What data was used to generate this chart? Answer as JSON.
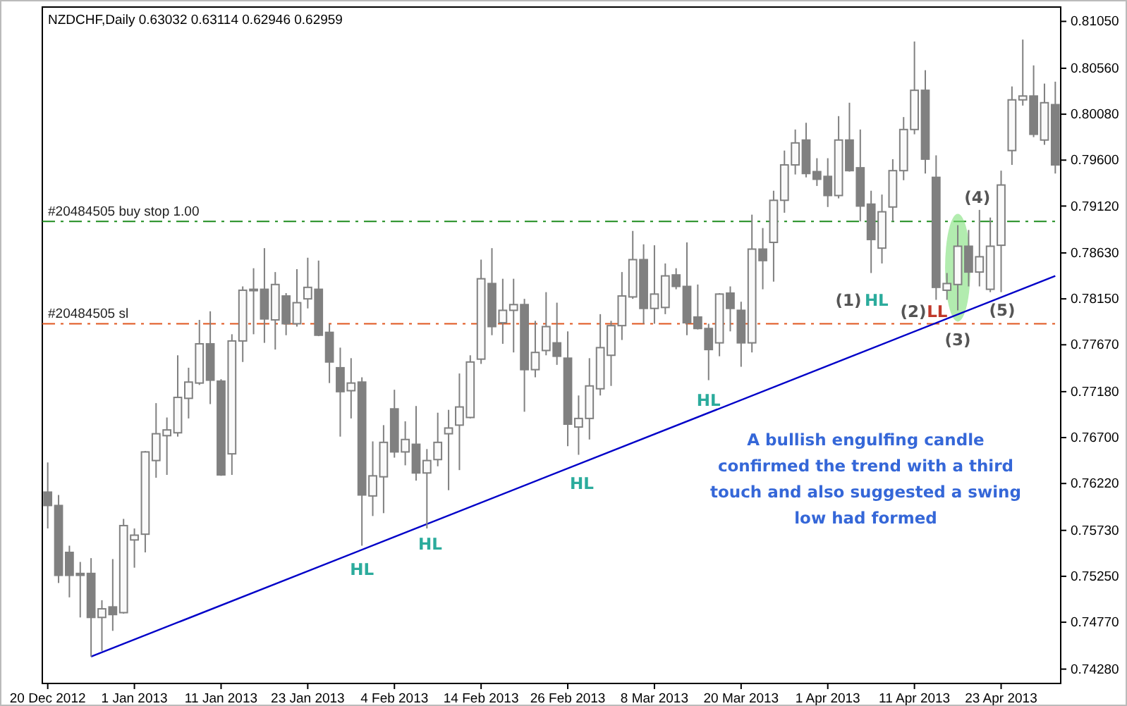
{
  "chart_data": {
    "type": "candlestick",
    "title": "NZDCHF,Daily  0.63032 0.63114 0.62946 0.62959",
    "color": "#808080",
    "categories": [
      "20 Dec 2012",
      null,
      null,
      null,
      null,
      null,
      null,
      null,
      "1 Jan 2013",
      null,
      null,
      null,
      null,
      null,
      null,
      null,
      "11 Jan 2013",
      null,
      null,
      null,
      null,
      null,
      null,
      null,
      "23 Jan 2013",
      null,
      null,
      null,
      null,
      null,
      null,
      null,
      "4 Feb 2013",
      null,
      null,
      null,
      null,
      null,
      null,
      null,
      "14 Feb 2013",
      null,
      null,
      null,
      null,
      null,
      null,
      null,
      "26 Feb 2013",
      null,
      null,
      null,
      null,
      null,
      null,
      null,
      "8 Mar 2013",
      null,
      null,
      null,
      null,
      null,
      null,
      null,
      "20 Mar 2013",
      null,
      null,
      null,
      null,
      null,
      null,
      null,
      "1 Apr 2013",
      null,
      null,
      null,
      null,
      null,
      null,
      null,
      "11 Apr 2013",
      null,
      null,
      null,
      null,
      null,
      null,
      null,
      "23 Apr 2013",
      null,
      null,
      null,
      null,
      null
    ],
    "ohlc": [
      [
        0.7613,
        0.7644,
        0.7575,
        0.7599
      ],
      [
        0.7599,
        0.761,
        0.7518,
        0.7526
      ],
      [
        0.755,
        0.7557,
        0.7503,
        0.7526
      ],
      [
        0.7528,
        0.754,
        0.7482,
        0.7526
      ],
      [
        0.7528,
        0.7544,
        0.7441,
        0.7482
      ],
      [
        0.7482,
        0.75,
        0.7447,
        0.7491
      ],
      [
        0.7493,
        0.7543,
        0.7468,
        0.7485
      ],
      [
        0.7487,
        0.7585,
        0.7486,
        0.7578
      ],
      [
        0.7563,
        0.7575,
        0.7534,
        0.7568
      ],
      [
        0.7569,
        0.7656,
        0.755,
        0.7655
      ],
      [
        0.7646,
        0.7706,
        0.7628,
        0.7674
      ],
      [
        0.7672,
        0.7691,
        0.7631,
        0.7678
      ],
      [
        0.7675,
        0.7756,
        0.7671,
        0.7712
      ],
      [
        0.7711,
        0.7743,
        0.769,
        0.7728
      ],
      [
        0.7727,
        0.7793,
        0.7725,
        0.7768
      ],
      [
        0.7768,
        0.7802,
        0.7705,
        0.773
      ],
      [
        0.7729,
        0.7731,
        0.763,
        0.7631
      ],
      [
        0.7653,
        0.7778,
        0.7631,
        0.7771
      ],
      [
        0.7771,
        0.7828,
        0.7749,
        0.7824
      ],
      [
        0.7824,
        0.7847,
        0.7778,
        0.7825
      ],
      [
        0.7825,
        0.7868,
        0.7769,
        0.7794
      ],
      [
        0.7793,
        0.7843,
        0.7762,
        0.783
      ],
      [
        0.7818,
        0.7821,
        0.7777,
        0.7789
      ],
      [
        0.7789,
        0.7846,
        0.7786,
        0.7811
      ],
      [
        0.7815,
        0.7858,
        0.7805,
        0.7827
      ],
      [
        0.7825,
        0.7855,
        0.7776,
        0.7777
      ],
      [
        0.778,
        0.7789,
        0.7727,
        0.7749
      ],
      [
        0.7743,
        0.7764,
        0.7671,
        0.7718
      ],
      [
        0.7719,
        0.7753,
        0.769,
        0.7727
      ],
      [
        0.7728,
        0.7733,
        0.7557,
        0.761
      ],
      [
        0.7609,
        0.7666,
        0.7588,
        0.763
      ],
      [
        0.7629,
        0.7683,
        0.7591,
        0.7665
      ],
      [
        0.77,
        0.772,
        0.7649,
        0.7655
      ],
      [
        0.7655,
        0.7687,
        0.7641,
        0.7668
      ],
      [
        0.7663,
        0.7703,
        0.7625,
        0.7633
      ],
      [
        0.7633,
        0.7658,
        0.7575,
        0.7646
      ],
      [
        0.7647,
        0.7696,
        0.764,
        0.7665
      ],
      [
        0.7674,
        0.7699,
        0.7615,
        0.768
      ],
      [
        0.7683,
        0.7737,
        0.7636,
        0.7702
      ],
      [
        0.7691,
        0.7756,
        0.769,
        0.7749
      ],
      [
        0.7752,
        0.7856,
        0.7747,
        0.7836
      ],
      [
        0.7831,
        0.7868,
        0.7777,
        0.7786
      ],
      [
        0.779,
        0.7836,
        0.7768,
        0.7803
      ],
      [
        0.7803,
        0.7836,
        0.7759,
        0.7809
      ],
      [
        0.7809,
        0.7815,
        0.7697,
        0.7741
      ],
      [
        0.7741,
        0.7792,
        0.7733,
        0.7759
      ],
      [
        0.7761,
        0.7822,
        0.7756,
        0.7786
      ],
      [
        0.7769,
        0.7811,
        0.7746,
        0.7755
      ],
      [
        0.7753,
        0.7781,
        0.7661,
        0.7684
      ],
      [
        0.7681,
        0.7714,
        0.7652,
        0.769
      ],
      [
        0.769,
        0.7753,
        0.7668,
        0.7724
      ],
      [
        0.7721,
        0.7799,
        0.7714,
        0.7764
      ],
      [
        0.7756,
        0.7792,
        0.7724,
        0.7787
      ],
      [
        0.7787,
        0.7843,
        0.7772,
        0.7818
      ],
      [
        0.7817,
        0.7886,
        0.7815,
        0.7856
      ],
      [
        0.7856,
        0.7872,
        0.7789,
        0.7805
      ],
      [
        0.7805,
        0.7871,
        0.7789,
        0.782
      ],
      [
        0.7806,
        0.7852,
        0.7799,
        0.7839
      ],
      [
        0.784,
        0.7847,
        0.7825,
        0.7828
      ],
      [
        0.7828,
        0.7874,
        0.7777,
        0.779
      ],
      [
        0.7796,
        0.783,
        0.7783,
        0.7784
      ],
      [
        0.7784,
        0.7789,
        0.773,
        0.7762
      ],
      [
        0.7769,
        0.7821,
        0.7755,
        0.782
      ],
      [
        0.7821,
        0.7828,
        0.7781,
        0.7805
      ],
      [
        0.7803,
        0.7812,
        0.7744,
        0.7769
      ],
      [
        0.7769,
        0.7903,
        0.7759,
        0.7867
      ],
      [
        0.7867,
        0.7889,
        0.7825,
        0.7855
      ],
      [
        0.7874,
        0.7928,
        0.7833,
        0.7918
      ],
      [
        0.7918,
        0.797,
        0.7905,
        0.7955
      ],
      [
        0.7955,
        0.7992,
        0.7945,
        0.7978
      ],
      [
        0.7981,
        0.7999,
        0.7942,
        0.7946
      ],
      [
        0.7948,
        0.7962,
        0.7933,
        0.794
      ],
      [
        0.7943,
        0.7962,
        0.7911,
        0.7923
      ],
      [
        0.7923,
        0.8006,
        0.792,
        0.7981
      ],
      [
        0.7981,
        0.802,
        0.7948,
        0.7949
      ],
      [
        0.7952,
        0.7992,
        0.7896,
        0.7912
      ],
      [
        0.7914,
        0.7928,
        0.7842,
        0.7877
      ],
      [
        0.7868,
        0.7924,
        0.7852,
        0.7906
      ],
      [
        0.7911,
        0.7961,
        0.7896,
        0.7949
      ],
      [
        0.7949,
        0.8005,
        0.7939,
        0.7992
      ],
      [
        0.7992,
        0.8084,
        0.7987,
        0.8033
      ],
      [
        0.8033,
        0.8054,
        0.7946,
        0.7961
      ],
      [
        0.7942,
        0.7965,
        0.7814,
        0.7827
      ],
      [
        0.7824,
        0.7842,
        0.7814,
        0.7831
      ],
      [
        0.783,
        0.7892,
        0.7803,
        0.787
      ],
      [
        0.787,
        0.7887,
        0.7828,
        0.7843
      ],
      [
        0.7843,
        0.7908,
        0.7828,
        0.7859
      ],
      [
        0.7825,
        0.79,
        0.7822,
        0.787
      ],
      [
        0.7871,
        0.7949,
        0.7822,
        0.7934
      ],
      [
        0.797,
        0.8037,
        0.7955,
        0.8023
      ],
      [
        0.8023,
        0.8086,
        0.8017,
        0.8027
      ],
      [
        0.8027,
        0.8059,
        0.7984,
        0.7987
      ],
      [
        0.7981,
        0.804,
        0.7976,
        0.802
      ],
      [
        0.8018,
        0.8042,
        0.7946,
        0.7955
      ]
    ],
    "series": [
      {
        "type": "line",
        "color": "#0000c8",
        "values": [
          null,
          null,
          null,
          null,
          0.7441,
          null,
          null,
          null,
          null,
          null,
          null,
          null,
          null,
          null,
          null,
          null,
          null,
          null,
          null,
          null,
          null,
          null,
          null,
          null,
          null,
          null,
          null,
          null,
          null,
          null,
          null,
          null,
          null,
          null,
          null,
          null,
          null,
          null,
          null,
          null,
          null,
          null,
          null,
          null,
          null,
          null,
          null,
          null,
          null,
          null,
          null,
          null,
          null,
          null,
          null,
          null,
          null,
          null,
          null,
          null,
          null,
          null,
          null,
          null,
          null,
          null,
          null,
          null,
          null,
          null,
          null,
          null,
          null,
          null,
          null,
          null,
          null,
          null,
          null,
          null,
          null,
          null,
          null,
          null,
          null,
          null,
          null,
          null,
          null,
          null,
          null,
          null,
          null,
          0.7839
        ]
      }
    ],
    "ylim": [
      0.7413,
      0.812
    ],
    "yticks": [
      {
        "value": 0.8105,
        "label": "0.81050"
      },
      {
        "value": 0.8056,
        "label": "0.80560"
      },
      {
        "value": 0.8008,
        "label": "0.80080"
      },
      {
        "value": 0.796,
        "label": "0.79600"
      },
      {
        "value": 0.7912,
        "label": "0.79120"
      },
      {
        "value": 0.7863,
        "label": "0.78630"
      },
      {
        "value": 0.7815,
        "label": "0.78150"
      },
      {
        "value": 0.7767,
        "label": "0.77670"
      },
      {
        "value": 0.7718,
        "label": "0.77180"
      },
      {
        "value": 0.767,
        "label": "0.76700"
      },
      {
        "value": 0.7622,
        "label": "0.76220"
      },
      {
        "value": 0.7573,
        "label": "0.75730"
      },
      {
        "value": 0.7525,
        "label": "0.75250"
      },
      {
        "value": 0.7477,
        "label": "0.74770"
      },
      {
        "value": 0.7428,
        "label": "0.74280"
      }
    ],
    "ref_lines": [
      {
        "axis": "y",
        "value": 0.7896,
        "label": "#20484505 buy stop 1.00",
        "color": "#1e8c1e",
        "line_style": "dashed"
      },
      {
        "axis": "y",
        "value": 0.7789,
        "label": "#20484505 sl",
        "color": "#e0561e",
        "line_style": "dashed"
      }
    ],
    "annotations": [
      "HL",
      "HL",
      "HL",
      "HL",
      "(1)",
      "HL",
      "(2)",
      "LL",
      "(3)",
      "(4)",
      "(5)",
      "A bullish engulfing candle confirmed the trend with a third touch and also suggested a swing low had formed"
    ]
  }
}
